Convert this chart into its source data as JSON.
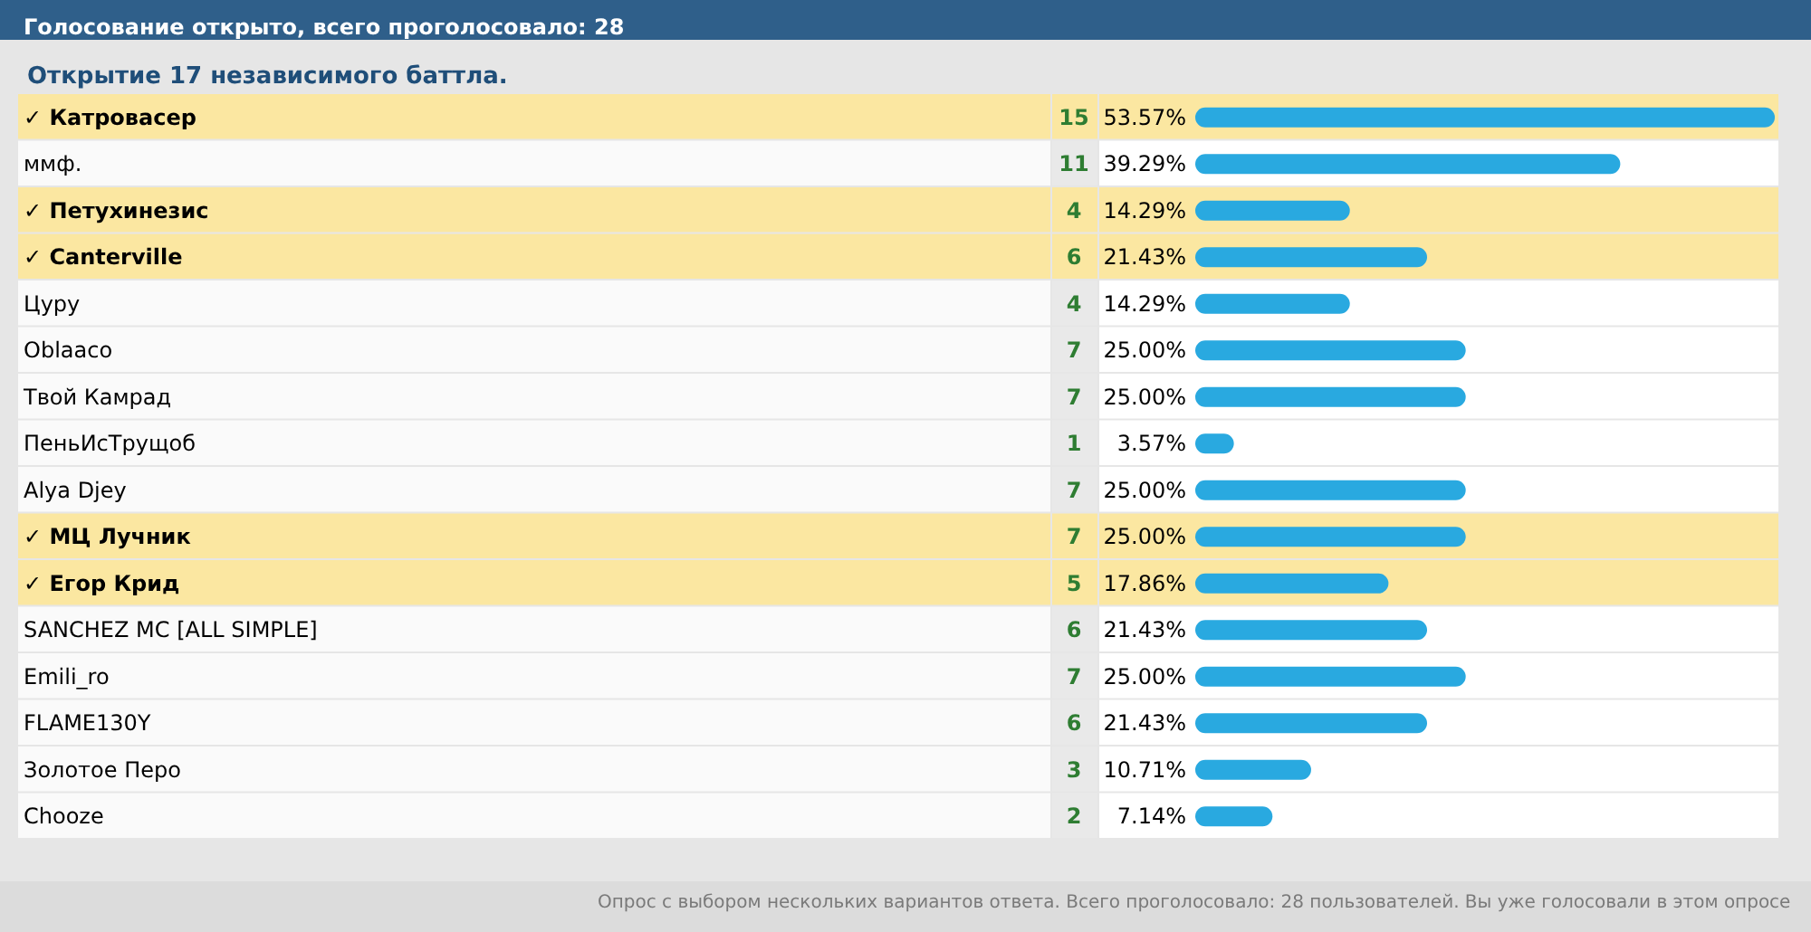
{
  "chart_data": {
    "type": "bar",
    "orientation": "horizontal",
    "title": "Голосование открыто, всего проголосовало: 28",
    "subtitle": "Открытие 17 независимого баттла.",
    "categories": [
      "✓ Катровасер",
      "ммф.",
      "✓ Петухинезис",
      "✓ Canterville",
      "Цуру",
      "Oblaaco",
      "Твой Камрад",
      "ПеньИсТрущоб",
      "Alya Djey",
      "✓ МЦ Лучник",
      "✓ Егор Крид",
      "SANCHEZ MC [ALL SIMPLE]",
      "Emili_ro",
      "FLAME130Y",
      "Золотое Перо",
      "Chooze"
    ],
    "values": [
      53.57,
      39.29,
      14.29,
      21.43,
      14.29,
      25.0,
      25.0,
      3.57,
      25.0,
      25.0,
      17.86,
      21.43,
      25.0,
      21.43,
      10.71,
      7.14
    ],
    "value_labels": [
      "53.57%",
      "39.29%",
      "14.29%",
      "21.43%",
      "14.29%",
      "25.00%",
      "25.00%",
      "3.57%",
      "25.00%",
      "25.00%",
      "17.86%",
      "21.43%",
      "25.00%",
      "21.43%",
      "10.71%",
      "7.14%"
    ],
    "color": "#29a9e0",
    "bands": [
      {
        "axis": "y",
        "from": "✓ Катровасер",
        "to": "✓ Катровасер",
        "color": "#fbe7a1"
      },
      {
        "axis": "y",
        "from": "✓ Петухинезис",
        "to": "✓ Петухинезис",
        "color": "#fbe7a1"
      },
      {
        "axis": "y",
        "from": "✓ Canterville",
        "to": "✓ Canterville",
        "color": "#fbe7a1"
      },
      {
        "axis": "y",
        "from": "✓ МЦ Лучник",
        "to": "✓ МЦ Лучник",
        "color": "#fbe7a1"
      },
      {
        "axis": "y",
        "from": "✓ Егор Крид",
        "to": "✓ Егор Крид",
        "color": "#fbe7a1"
      }
    ],
    "annotations": [
      "15",
      "11",
      "4",
      "6",
      "4",
      "7",
      "7",
      "1",
      "7",
      "7",
      "5",
      "6",
      "7",
      "6",
      "3",
      "2",
      "Опрос с выбором нескольких вариантов ответа. Всего проголосовало: 28 пользователей. Вы уже голосовали в этом опросе"
    ],
    "grid": false
  }
}
